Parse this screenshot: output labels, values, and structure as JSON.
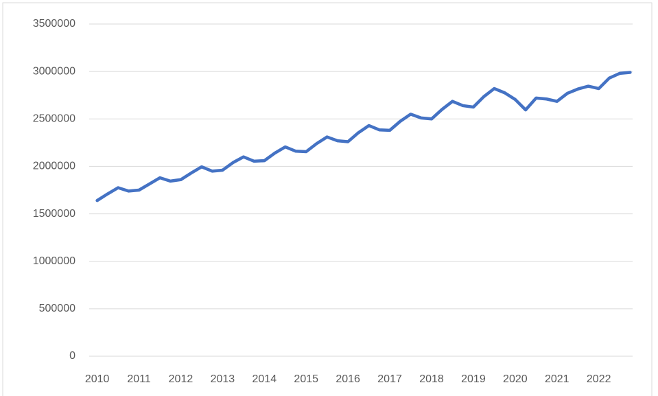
{
  "chart_data": {
    "type": "line",
    "categories": [
      "2010",
      null,
      null,
      null,
      "2011",
      null,
      null,
      null,
      "2012",
      null,
      null,
      null,
      "2013",
      null,
      null,
      null,
      "2014",
      null,
      null,
      null,
      "2015",
      null,
      null,
      null,
      "2016",
      null,
      null,
      null,
      "2017",
      null,
      null,
      null,
      "2018",
      null,
      null,
      null,
      "2019",
      null,
      null,
      null,
      "2020",
      null,
      null,
      null,
      "2021",
      null,
      null,
      null,
      "2022",
      null,
      null,
      null
    ],
    "values": [
      1640000,
      1710000,
      1775000,
      1740000,
      1750000,
      1815000,
      1880000,
      1845000,
      1860000,
      1930000,
      1995000,
      1950000,
      1960000,
      2040000,
      2100000,
      2055000,
      2060000,
      2140000,
      2205000,
      2160000,
      2155000,
      2240000,
      2310000,
      2270000,
      2260000,
      2355000,
      2430000,
      2385000,
      2380000,
      2475000,
      2550000,
      2510000,
      2500000,
      2600000,
      2685000,
      2640000,
      2625000,
      2735000,
      2820000,
      2775000,
      2705000,
      2595000,
      2720000,
      2710000,
      2685000,
      2770000,
      2815000,
      2845000,
      2820000,
      2930000,
      2980000,
      2990000
    ],
    "color": "#4472c4",
    "ylim": [
      0,
      3500000
    ],
    "yticks": [
      0,
      500000,
      1000000,
      1500000,
      2000000,
      2500000,
      3000000,
      3500000
    ],
    "grid": true
  }
}
